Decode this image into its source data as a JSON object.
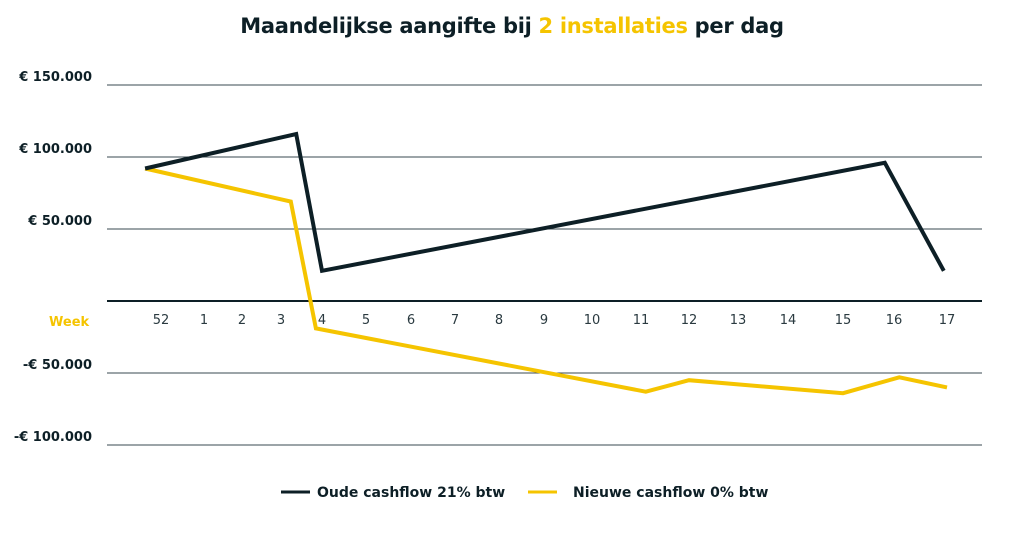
{
  "chart_data": {
    "type": "line",
    "title": {
      "part1": "Maandelijkse aangifte bij ",
      "highlight": "2 installaties",
      "part2": " per dag"
    },
    "xlabel": "Week",
    "categories": [
      "52",
      "1",
      "2",
      "3",
      "4",
      "5",
      "6",
      "7",
      "8",
      "9",
      "10",
      "11",
      "12",
      "13",
      "14",
      "15",
      "16",
      "17"
    ],
    "yticks": [
      {
        "value": 150000,
        "label": "€ 150.000"
      },
      {
        "value": 100000,
        "label": "€ 100.000"
      },
      {
        "value": 50000,
        "label": "€ 50.000"
      },
      {
        "value": -50000,
        "label": "-€ 50.000"
      },
      {
        "value": -100000,
        "label": "-€ 100.000"
      }
    ],
    "ylim": [
      -100000,
      150000
    ],
    "grid": true,
    "legend_position": "bottom",
    "series": [
      {
        "name": "Oude cashflow 21% btw",
        "color": "#0d1f26",
        "points": [
          [
            -0.37,
            92000
          ],
          [
            3.37,
            116000
          ],
          [
            4.0,
            21000
          ],
          [
            15.82,
            96000
          ],
          [
            16.94,
            21000
          ]
        ]
      },
      {
        "name": "Nieuwe cashflow 0% btw",
        "color": "#f5c400",
        "points": [
          [
            -0.37,
            92000
          ],
          [
            3.24,
            69000
          ],
          [
            3.85,
            -19000
          ],
          [
            11.1,
            -63000
          ],
          [
            12.0,
            -55000
          ],
          [
            15.0,
            -64000
          ],
          [
            16.1,
            -53000
          ],
          [
            17.0,
            -60000
          ]
        ]
      }
    ]
  }
}
